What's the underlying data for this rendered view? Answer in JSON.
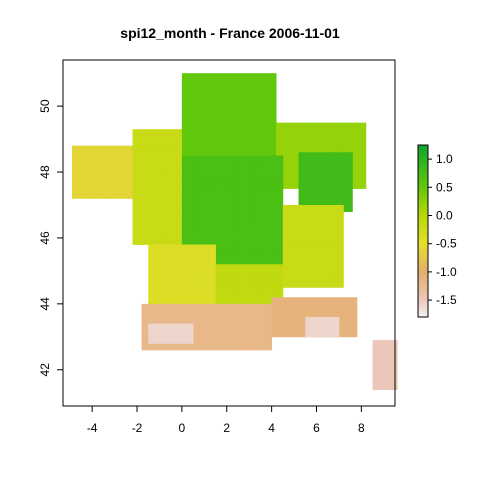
{
  "chart_data": {
    "type": "heatmap",
    "title": "spi12_month - France 2006-11-01",
    "xlabel": "",
    "ylabel": "",
    "xlim": [
      -5.3,
      9.5
    ],
    "ylim": [
      40.9,
      51.4
    ],
    "x_ticks": [
      -4,
      -2,
      0,
      2,
      4,
      6,
      8
    ],
    "y_ticks": [
      42,
      44,
      46,
      48,
      50
    ],
    "x_tick_labels": [
      "-4",
      "-2",
      "0",
      "2",
      "4",
      "6",
      "8"
    ],
    "y_tick_labels": [
      "42",
      "44",
      "46",
      "48",
      "50"
    ],
    "grid": false,
    "legend": {
      "position": "right",
      "type": "colorbar",
      "min": -1.8,
      "max": 1.25,
      "ticks": [
        1.0,
        0.5,
        0.0,
        -0.5,
        -1.0,
        -1.5
      ],
      "tick_labels": [
        "1.0",
        "0.5",
        "0.0",
        "-0.5",
        "-1.0",
        "-1.5"
      ],
      "color_stops": [
        {
          "value": -1.8,
          "color": "#f2f2f2"
        },
        {
          "value": -1.5,
          "color": "#ecc7b9"
        },
        {
          "value": -1.0,
          "color": "#e6ae6d"
        },
        {
          "value": -0.5,
          "color": "#e4df2a"
        },
        {
          "value": 0.0,
          "color": "#b7d80a"
        },
        {
          "value": 0.5,
          "color": "#62c80b"
        },
        {
          "value": 1.25,
          "color": "#11a52d"
        }
      ]
    },
    "grid_lon_step": 0.25,
    "grid_lat_step": 0.25,
    "regions": [
      {
        "lon_min": -4.9,
        "lon_max": -2.2,
        "lat_min": 47.2,
        "lat_max": 48.8,
        "value": -0.6
      },
      {
        "lon_min": -2.2,
        "lon_max": 0.0,
        "lat_min": 45.8,
        "lat_max": 49.3,
        "value": -0.2
      },
      {
        "lon_min": 0.0,
        "lon_max": 4.2,
        "lat_min": 48.5,
        "lat_max": 51.0,
        "value": 0.5
      },
      {
        "lon_min": 4.2,
        "lon_max": 8.2,
        "lat_min": 47.5,
        "lat_max": 49.5,
        "value": 0.2
      },
      {
        "lon_min": 5.2,
        "lon_max": 7.6,
        "lat_min": 46.8,
        "lat_max": 48.6,
        "value": 0.8
      },
      {
        "lon_min": 0.0,
        "lon_max": 4.5,
        "lat_min": 45.2,
        "lat_max": 48.5,
        "value": 0.7
      },
      {
        "lon_min": 4.5,
        "lon_max": 7.2,
        "lat_min": 44.5,
        "lat_max": 47.0,
        "value": -0.2
      },
      {
        "lon_min": -1.5,
        "lon_max": 1.5,
        "lat_min": 44.0,
        "lat_max": 45.8,
        "value": -0.4
      },
      {
        "lon_min": 1.5,
        "lon_max": 4.5,
        "lat_min": 44.0,
        "lat_max": 45.2,
        "value": -0.1
      },
      {
        "lon_min": -1.8,
        "lon_max": 4.0,
        "lat_min": 42.6,
        "lat_max": 44.0,
        "value": -1.2
      },
      {
        "lon_min": -1.5,
        "lon_max": 0.5,
        "lat_min": 42.8,
        "lat_max": 43.4,
        "value": -1.6
      },
      {
        "lon_min": 4.0,
        "lon_max": 7.8,
        "lat_min": 43.0,
        "lat_max": 44.2,
        "value": -1.1
      },
      {
        "lon_min": 5.5,
        "lon_max": 7.0,
        "lat_min": 43.0,
        "lat_max": 43.6,
        "value": -1.6
      },
      {
        "lon_min": 8.5,
        "lon_max": 9.6,
        "lat_min": 41.4,
        "lat_max": 42.9,
        "value": -1.5
      }
    ]
  }
}
